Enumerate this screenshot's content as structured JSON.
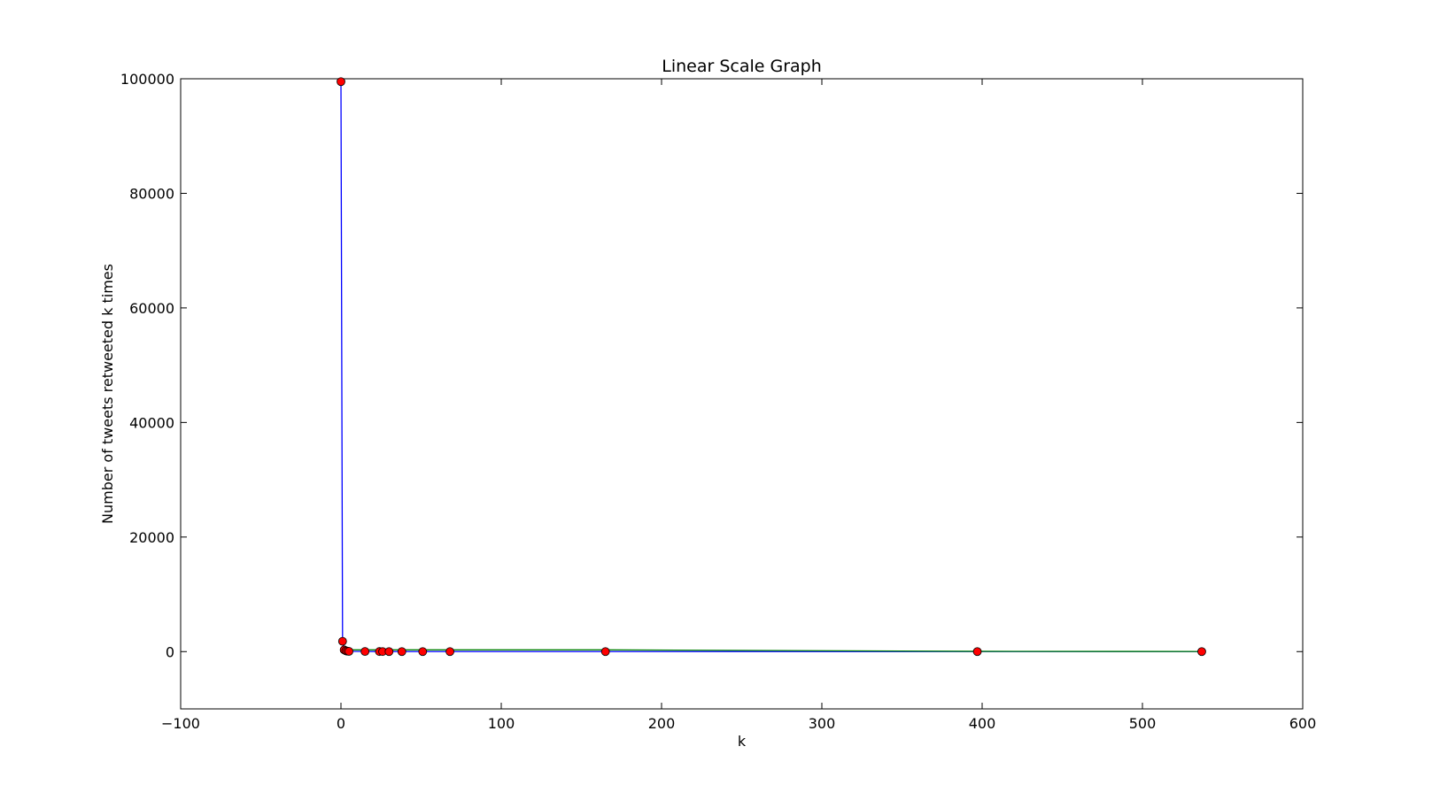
{
  "chart_data": {
    "type": "line",
    "title": "Linear Scale Graph",
    "xlabel": "k",
    "ylabel": "Number of tweets retweeted k times",
    "xlim": [
      -100,
      600
    ],
    "ylim": [
      -10000,
      100000
    ],
    "xticks": [
      -100,
      0,
      100,
      200,
      300,
      400,
      500,
      600
    ],
    "yticks": [
      0,
      20000,
      40000,
      60000,
      80000,
      100000
    ],
    "xtick_labels": [
      "−100",
      "0",
      "100",
      "200",
      "300",
      "400",
      "500",
      "600"
    ],
    "ytick_labels": [
      "0",
      "20000",
      "40000",
      "60000",
      "80000",
      "100000"
    ],
    "grid": false,
    "legend": "none",
    "series": [
      {
        "color": "#0000ff",
        "marker": "none",
        "x": [
          0,
          1,
          2,
          3,
          4,
          5,
          15,
          24,
          26,
          30,
          38,
          51,
          68,
          165,
          397,
          537
        ],
        "y": [
          99500,
          1800,
          300,
          150,
          80,
          40,
          20,
          10,
          8,
          6,
          4,
          3,
          2,
          1,
          1,
          1
        ]
      },
      {
        "color": "#008000",
        "marker": "none",
        "x": [
          0,
          1,
          2,
          3,
          4,
          5,
          15,
          24,
          26,
          30,
          38,
          51,
          68,
          165,
          397,
          537
        ],
        "y": [
          300,
          300,
          300,
          300,
          300,
          300,
          300,
          300,
          300,
          300,
          300,
          300,
          300,
          300,
          50,
          20
        ]
      },
      {
        "color": "#ff0000",
        "marker": "circle",
        "line": "none",
        "x": [
          0,
          1,
          2,
          3,
          4,
          5,
          15,
          24,
          26,
          30,
          38,
          51,
          68,
          165,
          397,
          537
        ],
        "y": [
          99500,
          1800,
          300,
          150,
          80,
          40,
          20,
          10,
          8,
          6,
          4,
          3,
          2,
          1,
          1,
          1
        ]
      }
    ]
  }
}
